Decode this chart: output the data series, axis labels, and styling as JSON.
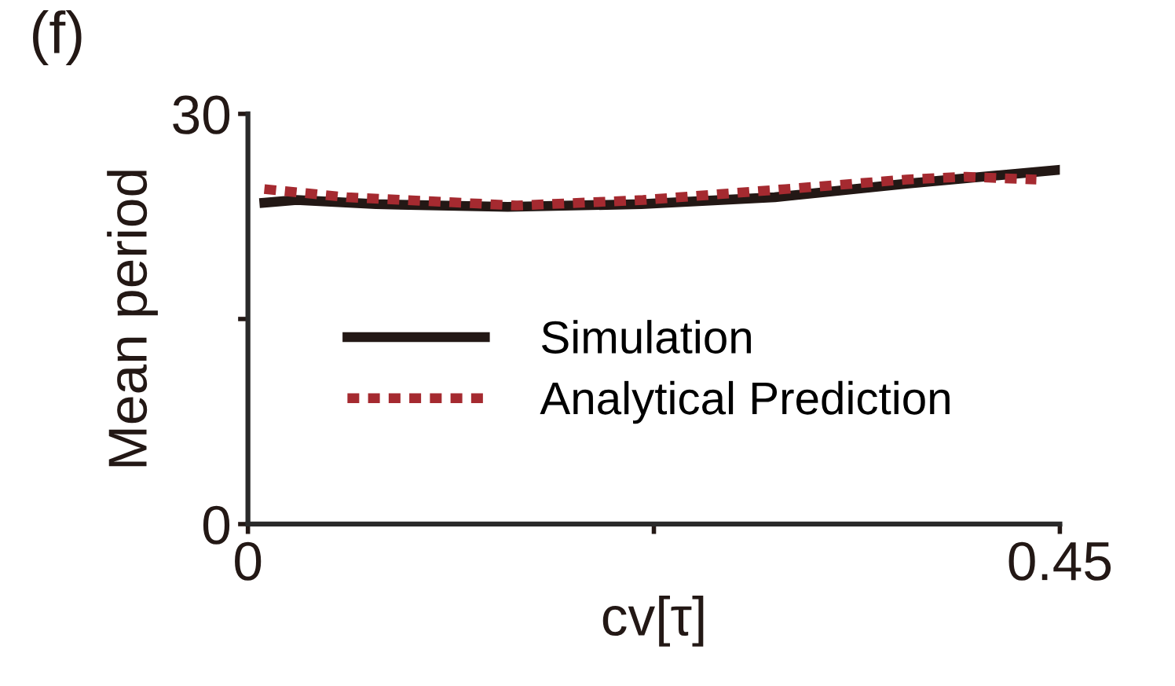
{
  "chart_data": {
    "type": "line",
    "xlabel": "cv[τ]",
    "ylabel": "Mean period",
    "annotations": [
      "(f)"
    ],
    "xlim": [
      0,
      0.45
    ],
    "ylim": [
      0,
      30
    ],
    "xticks": [
      0,
      {
        "value": 0.225,
        "label": null
      },
      0.45
    ],
    "yticks": [
      0,
      {
        "value": 15,
        "label": null
      },
      30
    ],
    "grid": false,
    "legend": "center",
    "series": [
      {
        "name": "Simulation",
        "color": "#231815",
        "line_style": "solid",
        "x": [
          0.0091,
          0.027,
          0.071,
          0.144,
          0.218,
          0.292,
          0.365,
          0.449
        ],
        "values": [
          23.5,
          23.7,
          23.4,
          23.2,
          23.4,
          23.9,
          24.9,
          25.9
        ]
      },
      {
        "name": "Analytical Prediction",
        "color": "#a52a30",
        "line_style": "dashed",
        "x": [
          0.0091,
          0.055,
          0.149,
          0.219,
          0.298,
          0.365,
          0.398,
          0.437
        ],
        "values": [
          24.5,
          23.9,
          23.3,
          23.7,
          24.5,
          25.2,
          25.4,
          25.2
        ]
      }
    ]
  }
}
